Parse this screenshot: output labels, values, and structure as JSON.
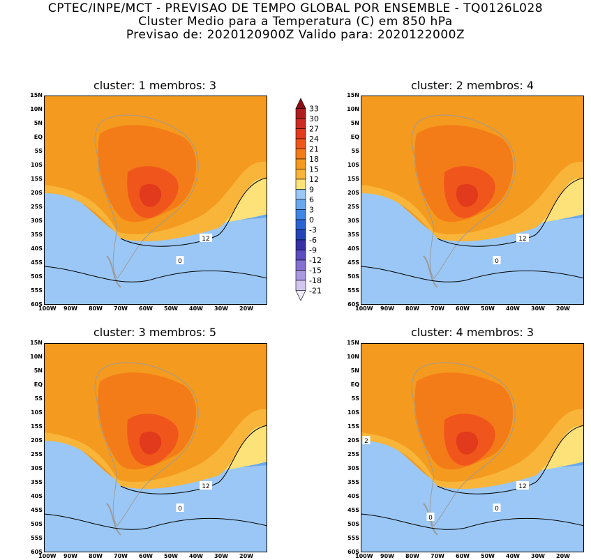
{
  "header": {
    "line1": "CPTEC/INPE/MCT - PREVISAO DE TEMPO GLOBAL POR ENSEMBLE - TQ0126L028",
    "line2": "Cluster Medio para a Temperatura (C) em 850 hPa",
    "line3": "Previsao de: 2020120900Z   Valido para: 2020122000Z"
  },
  "panels": [
    {
      "title": "cluster: 1   membros: 3",
      "labels": [
        "12",
        "0"
      ]
    },
    {
      "title": "cluster: 2   membros: 4",
      "labels": [
        "12",
        "0"
      ]
    },
    {
      "title": "cluster: 3   membros: 5",
      "labels": [
        "12",
        "0"
      ]
    },
    {
      "title": "cluster: 4   membros: 3",
      "labels": [
        "12",
        "0",
        "0",
        "2"
      ]
    }
  ],
  "axes": {
    "lat_ticks": [
      "15N",
      "10N",
      "5N",
      "EQ",
      "5S",
      "10S",
      "15S",
      "20S",
      "25S",
      "30S",
      "35S",
      "40S",
      "45S",
      "50S",
      "55S",
      "60S"
    ],
    "lon_ticks": [
      "100W",
      "90W",
      "80W",
      "70W",
      "60W",
      "50W",
      "40W",
      "30W",
      "20W"
    ]
  },
  "colorbar": {
    "levels": [
      "33",
      "30",
      "27",
      "24",
      "21",
      "18",
      "15",
      "12",
      "9",
      "6",
      "3",
      "0",
      "-3",
      "-6",
      "-9",
      "-12",
      "-15",
      "-18",
      "-21"
    ],
    "colors": [
      "#8b0f14",
      "#b01d1d",
      "#cc2a24",
      "#e23a1c",
      "#f0561b",
      "#f47c18",
      "#f49a1e",
      "#f8b53a",
      "#fde27a",
      "#9ac7f5",
      "#6aa8ee",
      "#3e86e3",
      "#2a64d2",
      "#2343b8",
      "#3731a6",
      "#5b4cc0",
      "#8370d0",
      "#ab99df",
      "#d2c6ee",
      "#efe9f8"
    ]
  }
}
